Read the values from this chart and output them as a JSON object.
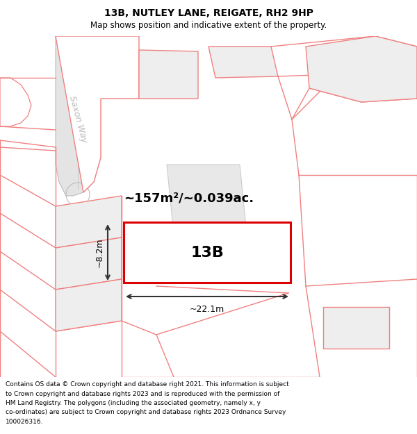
{
  "title_line1": "13B, NUTLEY LANE, REIGATE, RH2 9HP",
  "title_line2": "Map shows position and indicative extent of the property.",
  "area_label": "~157m²/~0.039ac.",
  "property_label": "13B",
  "width_label": "~22.1m",
  "height_label": "~8.2m",
  "street_label": "Saxon Way",
  "footer_text": "Contains OS data © Crown copyright and database right 2021. This information is subject to Crown copyright and database rights 2023 and is reproduced with the permission of HM Land Registry. The polygons (including the associated geometry, namely x, y co-ordinates) are subject to Crown copyright and database rights 2023 Ordnance Survey 100026316.",
  "bg_color": "#ffffff",
  "map_bg": "#ffffff",
  "polygon_fill": "#eeeeee",
  "polygon_edge_light": "#f08080",
  "property_edge": "#dd0000",
  "property_fill": "#ffffff",
  "road_fill": "#e4e4e4",
  "text_color": "#000000",
  "street_color": "#bbbbbb",
  "dim_line_color": "#333333",
  "title_fontsize": 10,
  "subtitle_fontsize": 8.5,
  "area_fontsize": 13,
  "label_fontsize": 16,
  "dim_fontsize": 9,
  "street_fontsize": 9,
  "footer_fontsize": 6.5
}
